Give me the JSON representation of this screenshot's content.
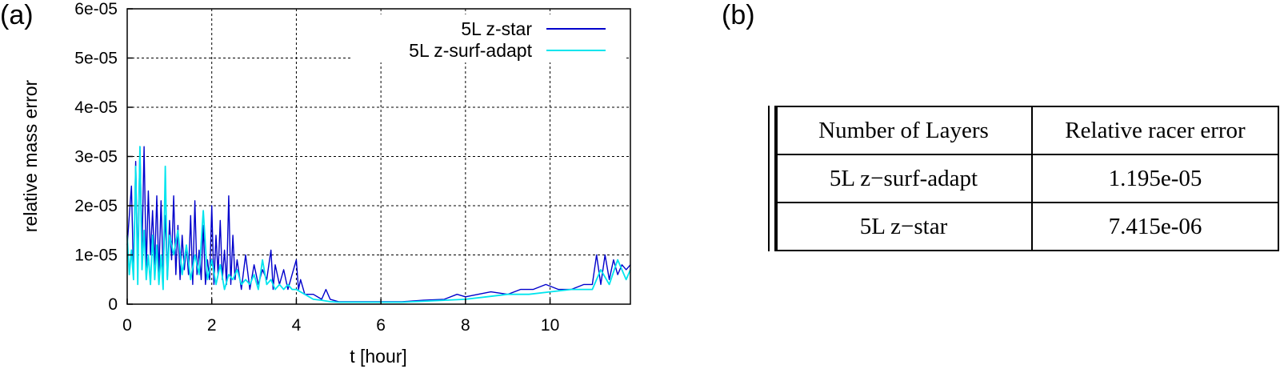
{
  "panels": {
    "a": "(a)",
    "b": "(b)"
  },
  "chart_data": {
    "type": "line",
    "xlabel": "t [hour]",
    "ylabel": "relative mass error",
    "xlim": [
      0,
      11.9
    ],
    "ylim": [
      0,
      6e-05
    ],
    "xticks": [
      0,
      2,
      4,
      6,
      8,
      10
    ],
    "yticks": [
      0,
      1e-05,
      2e-05,
      3e-05,
      4e-05,
      5e-05,
      6e-05
    ],
    "ytick_labels": [
      "0",
      "1e-05",
      "2e-05",
      "3e-05",
      "4e-05",
      "5e-05",
      "6e-05"
    ],
    "grid": true,
    "legend_position": "top-right",
    "series": [
      {
        "name": "5L z-star",
        "color": "#0000cc",
        "x": [
          0.0,
          0.1,
          0.15,
          0.2,
          0.25,
          0.3,
          0.35,
          0.4,
          0.45,
          0.5,
          0.55,
          0.6,
          0.65,
          0.7,
          0.75,
          0.8,
          0.85,
          0.9,
          0.95,
          1.0,
          1.05,
          1.1,
          1.15,
          1.2,
          1.25,
          1.3,
          1.35,
          1.4,
          1.45,
          1.5,
          1.55,
          1.6,
          1.65,
          1.7,
          1.75,
          1.8,
          1.85,
          1.9,
          1.95,
          2.0,
          2.05,
          2.1,
          2.15,
          2.2,
          2.25,
          2.3,
          2.35,
          2.4,
          2.45,
          2.5,
          2.55,
          2.6,
          2.7,
          2.8,
          2.9,
          3.0,
          3.1,
          3.2,
          3.3,
          3.4,
          3.45,
          3.5,
          3.6,
          3.7,
          3.8,
          3.9,
          4.0,
          4.05,
          4.1,
          4.2,
          4.4,
          4.6,
          4.7,
          4.8,
          5.0,
          5.5,
          6.0,
          6.5,
          7.0,
          7.5,
          7.8,
          8.0,
          8.3,
          8.6,
          9.0,
          9.3,
          9.6,
          9.9,
          10.2,
          10.5,
          10.8,
          11.0,
          11.1,
          11.2,
          11.3,
          11.4,
          11.5,
          11.6,
          11.7,
          11.8,
          11.9
        ],
        "y": [
          1.2e-05,
          2.4e-05,
          6e-06,
          2.9e-05,
          8e-06,
          3.2e-05,
          1.1e-05,
          3.2e-05,
          7e-06,
          2.3e-05,
          1e-05,
          1.9e-05,
          8e-06,
          2.2e-05,
          6e-06,
          2.1e-05,
          7e-06,
          1.8e-05,
          5e-06,
          1.7e-05,
          9e-06,
          2.2e-05,
          6e-06,
          1.6e-05,
          5e-06,
          1.4e-05,
          7e-06,
          1.2e-05,
          6e-06,
          1.8e-05,
          4e-06,
          2.1e-05,
          6e-06,
          1.1e-05,
          5e-06,
          1.6e-05,
          4e-06,
          9e-06,
          5e-06,
          2e-05,
          4e-06,
          1.4e-05,
          6e-06,
          1.7e-05,
          5e-06,
          1.1e-05,
          4e-06,
          2.2e-05,
          4e-06,
          1.4e-05,
          5e-06,
          9e-06,
          3e-06,
          1e-05,
          3e-06,
          8e-06,
          4e-06,
          7e-06,
          5e-06,
          1.1e-05,
          3e-06,
          8e-06,
          4e-06,
          7e-06,
          3e-06,
          6e-06,
          9e-06,
          3e-06,
          5e-06,
          2e-06,
          2e-06,
          1e-06,
          3e-06,
          1e-06,
          5e-07,
          5e-07,
          5e-07,
          5e-07,
          8e-07,
          1e-06,
          2e-06,
          1.5e-06,
          2e-06,
          2.5e-06,
          2e-06,
          3e-06,
          3e-06,
          4e-06,
          3e-06,
          3e-06,
          4e-06,
          4e-06,
          1e-05,
          4e-06,
          1e-05,
          5e-06,
          9e-06,
          6e-06,
          8e-06,
          7e-06,
          8e-06
        ]
      },
      {
        "name": "5L z-surf-adapt",
        "color": "#00e5ee",
        "x": [
          0.0,
          0.05,
          0.1,
          0.15,
          0.2,
          0.25,
          0.3,
          0.35,
          0.4,
          0.45,
          0.5,
          0.55,
          0.6,
          0.65,
          0.7,
          0.75,
          0.8,
          0.85,
          0.9,
          0.95,
          1.0,
          1.1,
          1.2,
          1.3,
          1.4,
          1.5,
          1.6,
          1.7,
          1.8,
          1.9,
          2.0,
          2.1,
          2.2,
          2.3,
          2.4,
          2.5,
          2.6,
          2.7,
          2.8,
          2.9,
          3.0,
          3.1,
          3.2,
          3.3,
          3.4,
          3.5,
          3.6,
          3.7,
          3.8,
          3.9,
          4.0,
          4.2,
          4.4,
          4.6,
          4.8,
          5.0,
          5.5,
          6.0,
          6.5,
          7.0,
          7.5,
          8.0,
          8.5,
          9.0,
          9.5,
          10.0,
          10.5,
          11.0,
          11.2,
          11.4,
          11.6,
          11.8,
          11.9
        ],
        "y": [
          1.4e-05,
          6e-06,
          1.1e-05,
          5e-06,
          2.8e-05,
          4e-06,
          3.2e-05,
          7e-06,
          1.5e-05,
          5e-06,
          1e-05,
          4e-06,
          1.4e-05,
          5e-06,
          1.2e-05,
          4e-06,
          1e-05,
          3e-06,
          2.8e-05,
          5e-06,
          1.4e-05,
          1e-05,
          1.5e-05,
          6e-06,
          1.2e-05,
          5e-06,
          1e-05,
          6e-06,
          1.9e-05,
          5e-06,
          9e-06,
          4e-06,
          8e-06,
          3e-06,
          6e-06,
          5e-06,
          7e-06,
          4e-06,
          5e-06,
          4e-06,
          6e-06,
          3e-06,
          9e-06,
          4e-06,
          5e-06,
          3e-06,
          4e-06,
          3e-06,
          4e-06,
          3e-06,
          3e-06,
          2e-06,
          1e-06,
          8e-07,
          5e-07,
          4e-07,
          4e-07,
          4e-07,
          4e-07,
          6e-07,
          8e-07,
          1e-06,
          1.5e-06,
          2e-06,
          2e-06,
          2.5e-06,
          3e-06,
          3e-06,
          7e-06,
          4e-06,
          9e-06,
          5e-06,
          7e-06
        ]
      }
    ]
  },
  "table": {
    "headers": [
      "Number of Layers",
      "Relative racer error"
    ],
    "rows": [
      [
        "5L z−surf-adapt",
        "1.195e-05"
      ],
      [
        "5L z−star",
        "7.415e-06"
      ]
    ]
  }
}
